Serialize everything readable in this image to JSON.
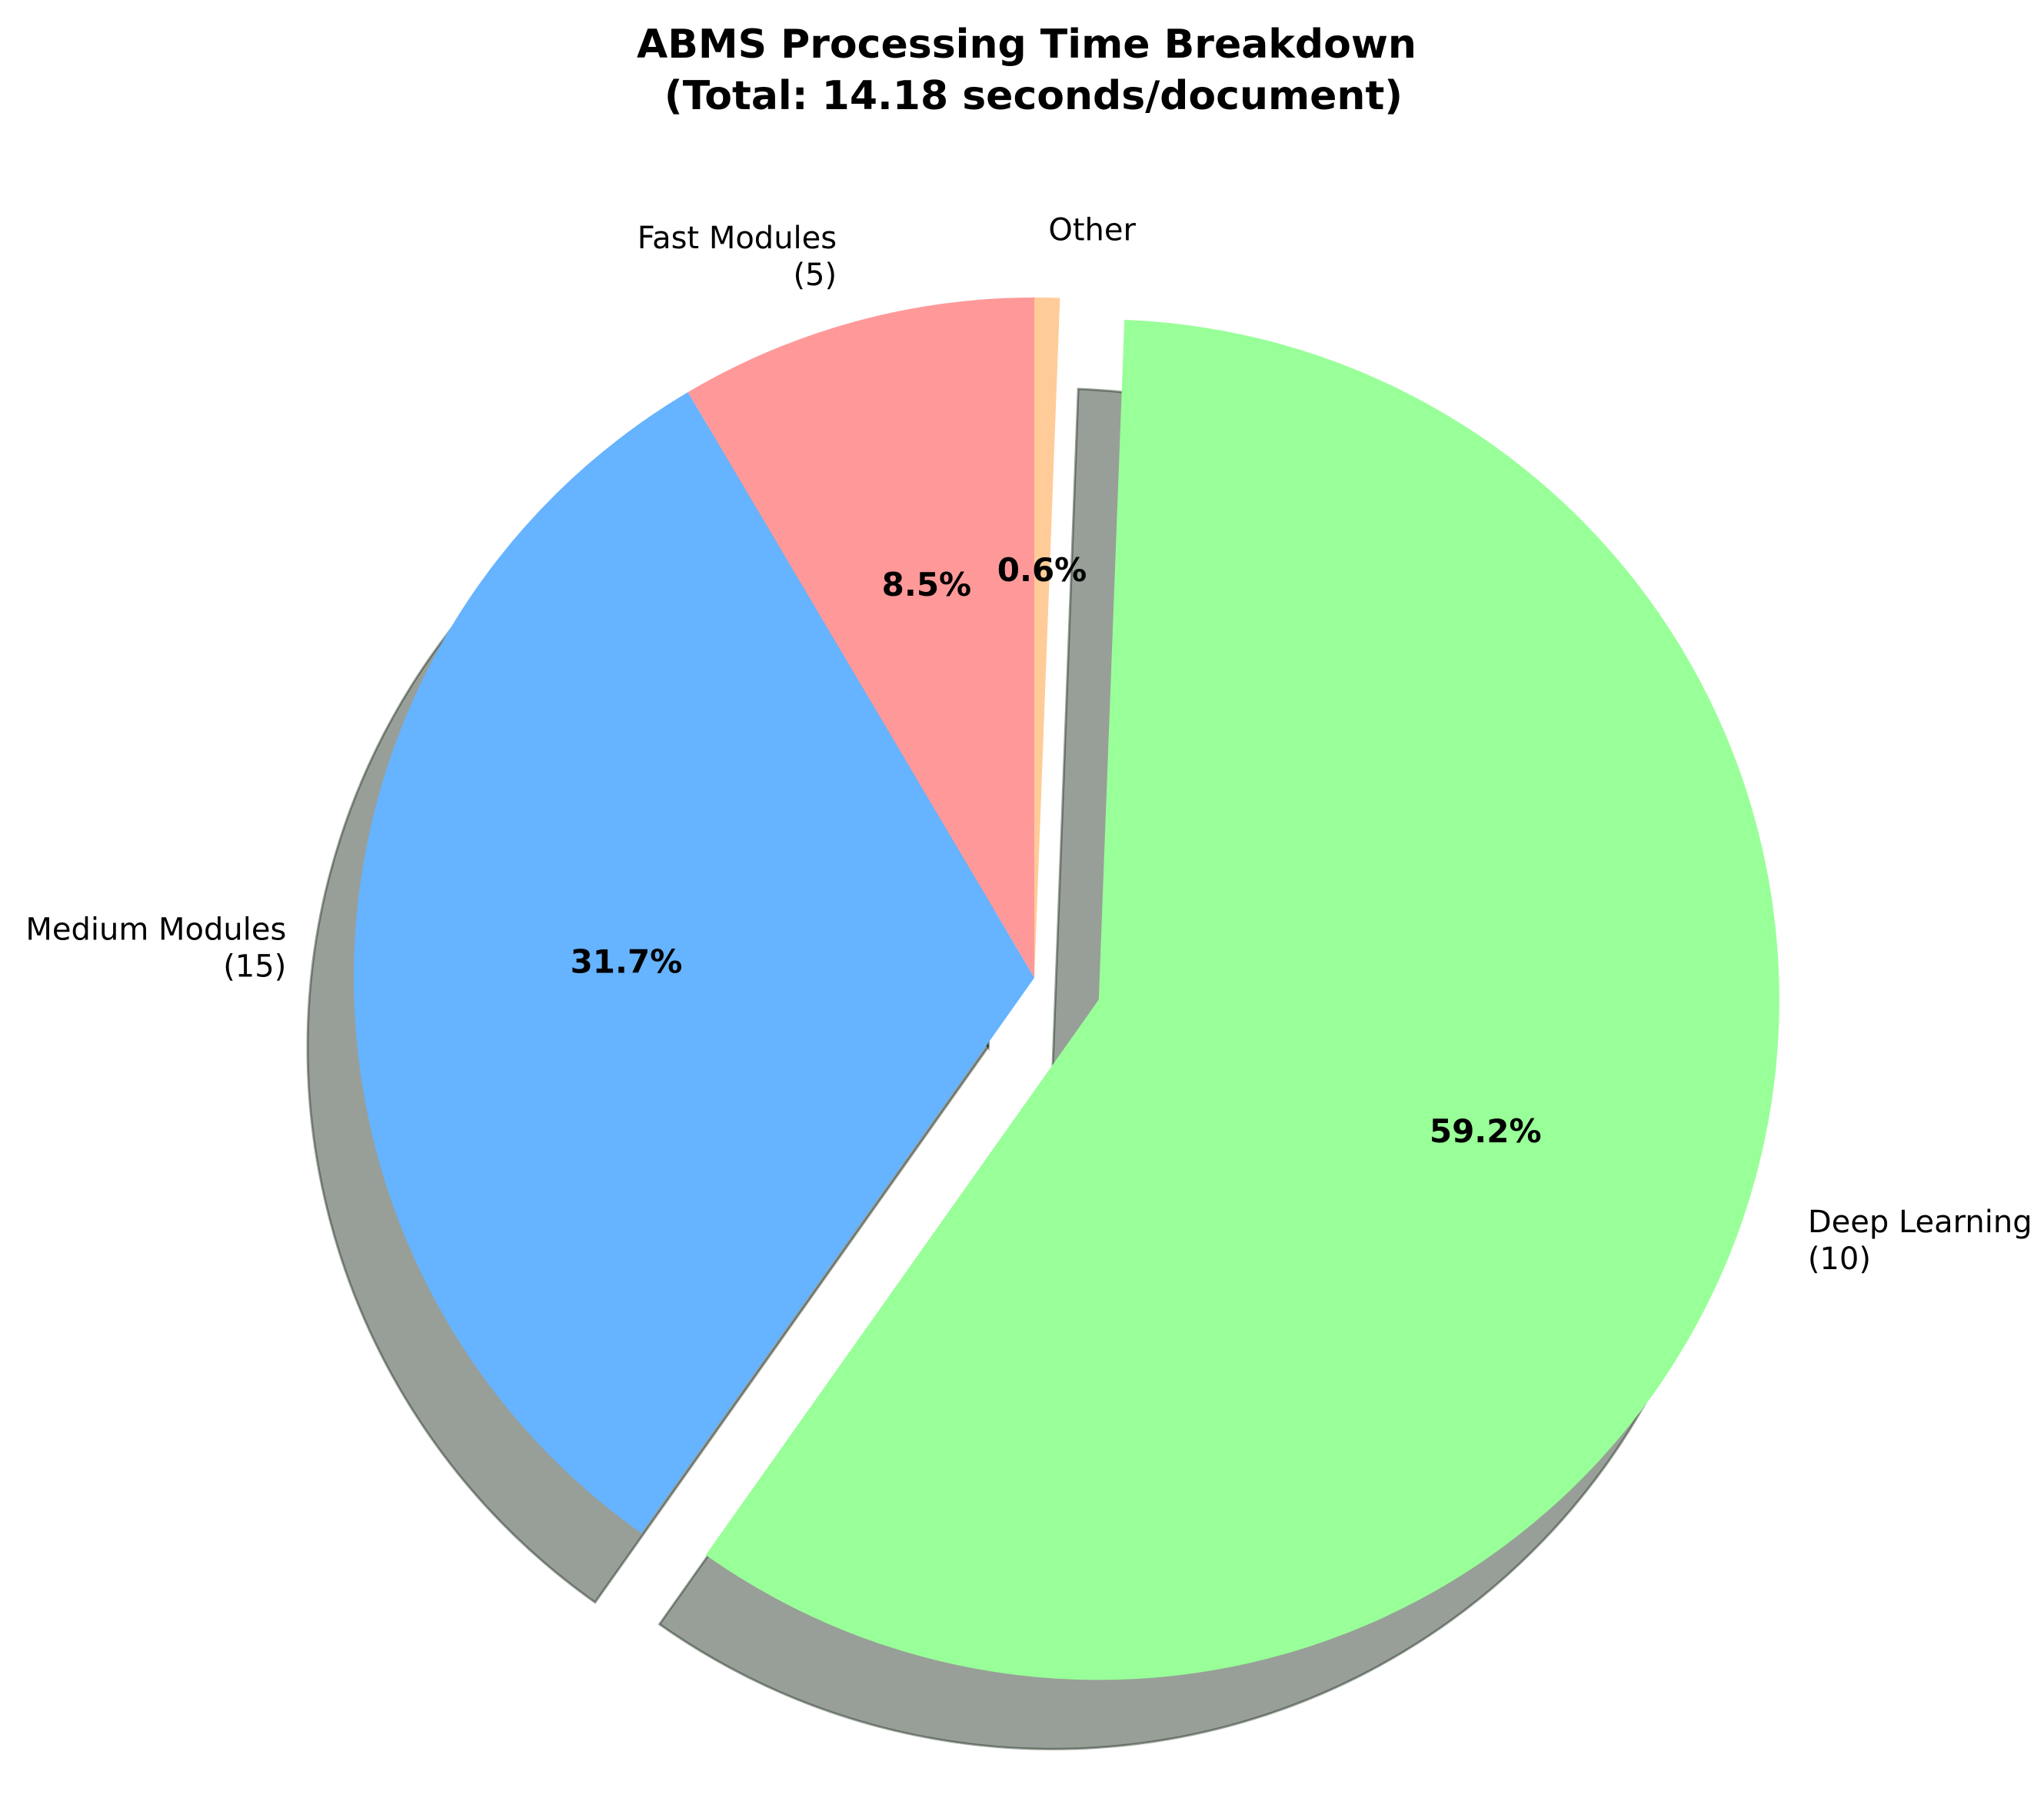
{
  "chart_data": {
    "type": "pie",
    "title_lines": [
      "ABMS Processing Time Breakdown",
      "(Total: 14.18 seconds/document)"
    ],
    "slices": [
      {
        "label": "Fast Modules",
        "count": "(5)",
        "percent": 8.5,
        "percent_label": "8.5%",
        "color": "#FF9999",
        "exploded": false
      },
      {
        "label": "Medium Modules",
        "count": "(15)",
        "percent": 31.7,
        "percent_label": "31.7%",
        "color": "#66B3FF",
        "exploded": false
      },
      {
        "label": "Deep Learning",
        "count": "(10)",
        "percent": 59.2,
        "percent_label": "59.2%",
        "color": "#99FF99",
        "exploded": true
      },
      {
        "label": "Other",
        "count": "",
        "percent": 0.6,
        "percent_label": "0.6%",
        "color": "#FFCC99",
        "exploded": false
      }
    ],
    "start_angle_deg": 90,
    "direction": "counterclockwise",
    "shadow": true
  }
}
